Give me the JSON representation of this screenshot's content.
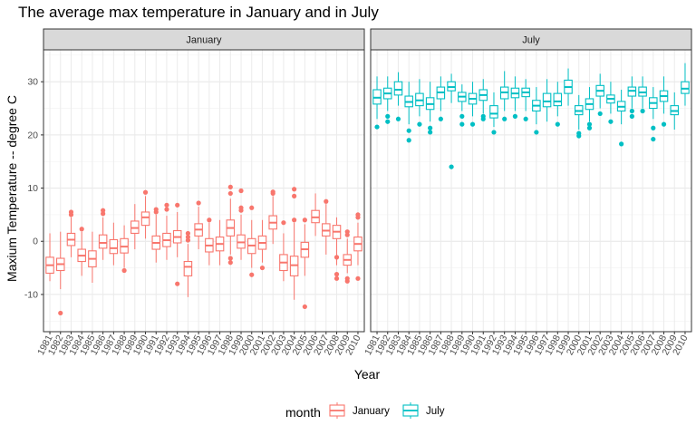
{
  "chart_data": {
    "type": "boxplot",
    "title": "The average max temperature in January and in July",
    "xlabel": "Year",
    "ylabel": "Maxium Temperature -- degree C",
    "ylim": [
      -17,
      36
    ],
    "yticks": [
      -10,
      0,
      10,
      20,
      30
    ],
    "grid": true,
    "legend": {
      "title": "month",
      "placement": "bottom",
      "entries": [
        "January",
        "July"
      ]
    },
    "categories": [
      "1981",
      "1982",
      "1983",
      "1984",
      "1985",
      "1986",
      "1987",
      "1988",
      "1989",
      "1990",
      "1991",
      "1992",
      "1993",
      "1994",
      "1995",
      "1996",
      "1997",
      "1998",
      "1999",
      "2000",
      "2001",
      "2002",
      "2003",
      "2004",
      "2005",
      "2006",
      "2007",
      "2008",
      "2009",
      "2010"
    ],
    "panels": [
      {
        "name": "January",
        "color": "#F8766D",
        "boxes": [
          {
            "year": "1981",
            "min": -7.5,
            "q1": -6.0,
            "median": -4.5,
            "q3": -3.0,
            "max": 1.5,
            "outliers": []
          },
          {
            "year": "1982",
            "min": -9.0,
            "q1": -5.5,
            "median": -4.3,
            "q3": -3.2,
            "max": 1.8,
            "outliers": [
              -13.5
            ]
          },
          {
            "year": "1983",
            "min": -3.0,
            "q1": -0.8,
            "median": 0.3,
            "q3": 1.5,
            "max": 4.5,
            "outliers": [
              5.0,
              5.5
            ]
          },
          {
            "year": "1984",
            "min": -6.5,
            "q1": -3.8,
            "median": -2.7,
            "q3": -1.5,
            "max": 1.8,
            "outliers": [
              2.3
            ]
          },
          {
            "year": "1985",
            "min": -7.8,
            "q1": -4.8,
            "median": -3.3,
            "q3": -1.8,
            "max": 1.8,
            "outliers": []
          },
          {
            "year": "1986",
            "min": -3.5,
            "q1": -1.3,
            "median": -0.3,
            "q3": 1.2,
            "max": 4.5,
            "outliers": [
              5.2,
              5.8
            ]
          },
          {
            "year": "1987",
            "min": -4.5,
            "q1": -2.3,
            "median": -1.3,
            "q3": 0.3,
            "max": 3.5,
            "outliers": []
          },
          {
            "year": "1988",
            "min": -5.0,
            "q1": -2.2,
            "median": -1.0,
            "q3": 0.5,
            "max": 3.0,
            "outliers": [
              -5.5
            ]
          },
          {
            "year": "1989",
            "min": -1.5,
            "q1": 1.5,
            "median": 2.5,
            "q3": 3.8,
            "max": 7.0,
            "outliers": []
          },
          {
            "year": "1990",
            "min": 0.5,
            "q1": 3.0,
            "median": 4.5,
            "q3": 5.5,
            "max": 8.5,
            "outliers": [
              9.2
            ]
          },
          {
            "year": "1991",
            "min": -4.0,
            "q1": -1.5,
            "median": -0.3,
            "q3": 1.0,
            "max": 5.0,
            "outliers": [
              5.5,
              6.0
            ]
          },
          {
            "year": "1992",
            "min": -3.5,
            "q1": -1.0,
            "median": 0.2,
            "q3": 1.5,
            "max": 4.8,
            "outliers": [
              6.0,
              6.8
            ]
          },
          {
            "year": "1993",
            "min": -3.0,
            "q1": -0.3,
            "median": 0.8,
            "q3": 2.0,
            "max": 5.5,
            "outliers": [
              -8.0,
              6.8
            ]
          },
          {
            "year": "1994",
            "min": -10.5,
            "q1": -6.5,
            "median": -4.8,
            "q3": -3.8,
            "max": -0.5,
            "outliers": [
              0.2,
              0.8,
              1.5
            ]
          },
          {
            "year": "1995",
            "min": -1.5,
            "q1": 1.0,
            "median": 2.2,
            "q3": 3.3,
            "max": 6.5,
            "outliers": [
              7.2
            ]
          },
          {
            "year": "1996",
            "min": -4.5,
            "q1": -2.0,
            "median": -0.8,
            "q3": 0.5,
            "max": 3.5,
            "outliers": [
              4.0
            ]
          },
          {
            "year": "1997",
            "min": -4.5,
            "q1": -1.8,
            "median": -0.5,
            "q3": 0.8,
            "max": 4.0,
            "outliers": []
          },
          {
            "year": "1998",
            "min": -2.5,
            "q1": 1.0,
            "median": 2.5,
            "q3": 4.0,
            "max": 8.0,
            "outliers": [
              -4.0,
              -3.2,
              9.0,
              10.2
            ]
          },
          {
            "year": "1999",
            "min": -3.5,
            "q1": -1.3,
            "median": -0.2,
            "q3": 1.2,
            "max": 5.0,
            "outliers": [
              5.8,
              6.3,
              9.5
            ]
          },
          {
            "year": "2000",
            "min": -5.0,
            "q1": -2.3,
            "median": -0.8,
            "q3": 0.5,
            "max": 4.0,
            "outliers": [
              -6.3,
              6.3
            ]
          },
          {
            "year": "2001",
            "min": -4.0,
            "q1": -1.5,
            "median": -0.3,
            "q3": 1.0,
            "max": 4.0,
            "outliers": [
              -5.0
            ]
          },
          {
            "year": "2002",
            "min": -0.5,
            "q1": 2.3,
            "median": 3.5,
            "q3": 4.8,
            "max": 8.5,
            "outliers": [
              9.0,
              9.3
            ]
          },
          {
            "year": "2003",
            "min": -7.5,
            "q1": -5.5,
            "median": -4.0,
            "q3": -2.5,
            "max": 1.5,
            "outliers": [
              3.5
            ]
          },
          {
            "year": "2004",
            "min": -11.0,
            "q1": -6.5,
            "median": -4.5,
            "q3": -2.8,
            "max": 3.5,
            "outliers": [
              4.0,
              8.5,
              9.8
            ]
          },
          {
            "year": "2005",
            "min": -6.5,
            "q1": -3.0,
            "median": -1.5,
            "q3": -0.2,
            "max": 3.2,
            "outliers": [
              -12.3,
              4.0
            ]
          },
          {
            "year": "2006",
            "min": 1.0,
            "q1": 3.5,
            "median": 4.5,
            "q3": 5.8,
            "max": 9.0,
            "outliers": []
          },
          {
            "year": "2007",
            "min": -2.5,
            "q1": 1.0,
            "median": 2.0,
            "q3": 3.3,
            "max": 7.0,
            "outliers": [
              7.5
            ]
          },
          {
            "year": "2008",
            "min": -4.5,
            "q1": 0.5,
            "median": 1.8,
            "q3": 3.0,
            "max": 4.5,
            "outliers": [
              -7.0,
              -6.2,
              -3.0
            ]
          },
          {
            "year": "2009",
            "min": -6.0,
            "q1": -4.5,
            "median": -3.5,
            "q3": -2.5,
            "max": 0.5,
            "outliers": [
              -7.5,
              -7.0,
              1.2,
              1.8
            ]
          },
          {
            "year": "2010",
            "min": -4.5,
            "q1": -1.8,
            "median": -0.5,
            "q3": 0.8,
            "max": 3.5,
            "outliers": [
              -7.0,
              4.5,
              5.0
            ]
          }
        ]
      },
      {
        "name": "July",
        "color": "#00BFC4",
        "boxes": [
          {
            "year": "1981",
            "min": 23.0,
            "q1": 25.8,
            "median": 27.0,
            "q3": 28.5,
            "max": 31.0,
            "outliers": [
              21.5
            ]
          },
          {
            "year": "1982",
            "min": 24.5,
            "q1": 26.8,
            "median": 27.8,
            "q3": 28.8,
            "max": 31.0,
            "outliers": [
              22.5,
              23.5
            ]
          },
          {
            "year": "1983",
            "min": 25.5,
            "q1": 27.5,
            "median": 28.5,
            "q3": 30.0,
            "max": 31.8,
            "outliers": [
              23.0
            ]
          },
          {
            "year": "1984",
            "min": 22.0,
            "q1": 25.3,
            "median": 26.2,
            "q3": 27.3,
            "max": 30.0,
            "outliers": [
              19.0,
              20.8
            ]
          },
          {
            "year": "1985",
            "min": 23.5,
            "q1": 25.5,
            "median": 26.5,
            "q3": 27.8,
            "max": 30.5,
            "outliers": [
              22.0
            ]
          },
          {
            "year": "1986",
            "min": 22.5,
            "q1": 24.8,
            "median": 25.8,
            "q3": 27.0,
            "max": 30.0,
            "outliers": [
              20.5,
              21.3
            ]
          },
          {
            "year": "1987",
            "min": 24.5,
            "q1": 26.8,
            "median": 28.0,
            "q3": 29.0,
            "max": 31.0,
            "outliers": [
              23.0
            ]
          },
          {
            "year": "1988",
            "min": 26.0,
            "q1": 28.3,
            "median": 29.0,
            "q3": 30.0,
            "max": 31.5,
            "outliers": [
              14.0
            ]
          },
          {
            "year": "1989",
            "min": 24.5,
            "q1": 26.3,
            "median": 27.2,
            "q3": 28.0,
            "max": 29.5,
            "outliers": [
              22.0,
              23.5
            ]
          },
          {
            "year": "1990",
            "min": 23.5,
            "q1": 25.8,
            "median": 26.8,
            "q3": 27.8,
            "max": 30.0,
            "outliers": [
              22.0
            ]
          },
          {
            "year": "1991",
            "min": 24.0,
            "q1": 26.5,
            "median": 27.5,
            "q3": 28.5,
            "max": 30.5,
            "outliers": [
              23.0,
              23.5
            ]
          },
          {
            "year": "1992",
            "min": 21.5,
            "q1": 23.2,
            "median": 24.0,
            "q3": 25.5,
            "max": 28.0,
            "outliers": [
              20.5
            ]
          },
          {
            "year": "1993",
            "min": 24.5,
            "q1": 26.8,
            "median": 28.0,
            "q3": 29.0,
            "max": 32.0,
            "outliers": [
              23.0
            ]
          },
          {
            "year": "1994",
            "min": 24.5,
            "q1": 27.0,
            "median": 27.8,
            "q3": 28.8,
            "max": 31.0,
            "outliers": [
              23.5
            ]
          },
          {
            "year": "1995",
            "min": 24.5,
            "q1": 27.2,
            "median": 28.0,
            "q3": 28.8,
            "max": 30.5,
            "outliers": [
              23.0
            ]
          },
          {
            "year": "1996",
            "min": 22.0,
            "q1": 24.5,
            "median": 25.5,
            "q3": 26.5,
            "max": 29.0,
            "outliers": [
              20.5
            ]
          },
          {
            "year": "1997",
            "min": 22.5,
            "q1": 25.3,
            "median": 26.3,
            "q3": 27.8,
            "max": 30.5,
            "outliers": []
          },
          {
            "year": "1998",
            "min": 23.5,
            "q1": 25.5,
            "median": 26.3,
            "q3": 27.8,
            "max": 30.0,
            "outliers": [
              22.0
            ]
          },
          {
            "year": "1999",
            "min": 25.5,
            "q1": 27.8,
            "median": 29.0,
            "q3": 30.3,
            "max": 32.5,
            "outliers": []
          },
          {
            "year": "2000",
            "min": 21.0,
            "q1": 23.8,
            "median": 24.5,
            "q3": 25.5,
            "max": 27.5,
            "outliers": [
              19.8,
              20.3
            ]
          },
          {
            "year": "2001",
            "min": 22.5,
            "q1": 24.8,
            "median": 25.8,
            "q3": 26.8,
            "max": 29.0,
            "outliers": [
              21.3,
              22.0
            ]
          },
          {
            "year": "2002",
            "min": 25.0,
            "q1": 27.3,
            "median": 28.3,
            "q3": 29.3,
            "max": 31.5,
            "outliers": [
              24.0
            ]
          },
          {
            "year": "2003",
            "min": 24.0,
            "q1": 26.0,
            "median": 26.8,
            "q3": 27.5,
            "max": 30.0,
            "outliers": [
              22.5
            ]
          },
          {
            "year": "2004",
            "min": 22.0,
            "q1": 24.5,
            "median": 25.3,
            "q3": 26.3,
            "max": 28.5,
            "outliers": [
              18.3
            ]
          },
          {
            "year": "2005",
            "min": 25.0,
            "q1": 27.3,
            "median": 28.3,
            "q3": 29.0,
            "max": 31.0,
            "outliers": [
              23.5,
              24.5
            ]
          },
          {
            "year": "2006",
            "min": 25.0,
            "q1": 27.3,
            "median": 28.0,
            "q3": 29.0,
            "max": 31.0,
            "outliers": [
              24.5
            ]
          },
          {
            "year": "2007",
            "min": 23.0,
            "q1": 25.0,
            "median": 26.0,
            "q3": 27.0,
            "max": 29.0,
            "outliers": [
              19.2,
              21.3
            ]
          },
          {
            "year": "2008",
            "min": 24.0,
            "q1": 26.3,
            "median": 27.3,
            "q3": 28.3,
            "max": 31.0,
            "outliers": [
              22.0
            ]
          },
          {
            "year": "2009",
            "min": 21.0,
            "q1": 23.8,
            "median": 24.5,
            "q3": 25.5,
            "max": 28.0,
            "outliers": []
          },
          {
            "year": "2010",
            "min": 25.5,
            "q1": 27.8,
            "median": 28.7,
            "q3": 30.0,
            "max": 33.5,
            "outliers": []
          }
        ]
      }
    ]
  }
}
